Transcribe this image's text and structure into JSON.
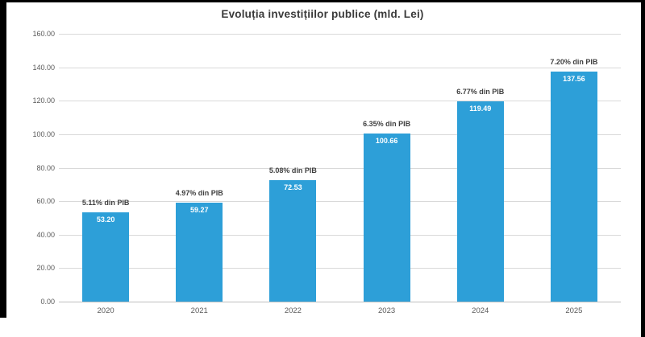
{
  "chart_data": {
    "type": "bar",
    "title": "Evoluția investițiilor publice (mld. Lei)",
    "categories": [
      "2020",
      "2021",
      "2022",
      "2023",
      "2024",
      "2025"
    ],
    "values": [
      53.2,
      59.27,
      72.53,
      100.66,
      119.49,
      137.56
    ],
    "value_labels": [
      "53.20",
      "59.27",
      "72.53",
      "100.66",
      "119.49",
      "137.56"
    ],
    "pib_labels": [
      "5.11% din PIB",
      "4.97% din PIB",
      "5.08% din PIB",
      "6.35% din PIB",
      "6.77% din PIB",
      "7.20% din PIB"
    ],
    "xlabel": "",
    "ylabel": "",
    "ylim": [
      0,
      160
    ],
    "ytick_step": 20,
    "yticks": [
      "160.00",
      "140.00",
      "120.00",
      "100.00",
      "80.00",
      "60.00",
      "40.00",
      "20.00",
      "0.00"
    ],
    "grid": true,
    "legend": "none",
    "bar_color": "#2d9fd8",
    "bar_value_text_color": "#ffffff",
    "gridline_color": "#d9d9d9",
    "axis_text_color": "#595959",
    "title_color": "#3a3a3a",
    "frame_color": "#000000",
    "background_color": "#ffffff"
  }
}
